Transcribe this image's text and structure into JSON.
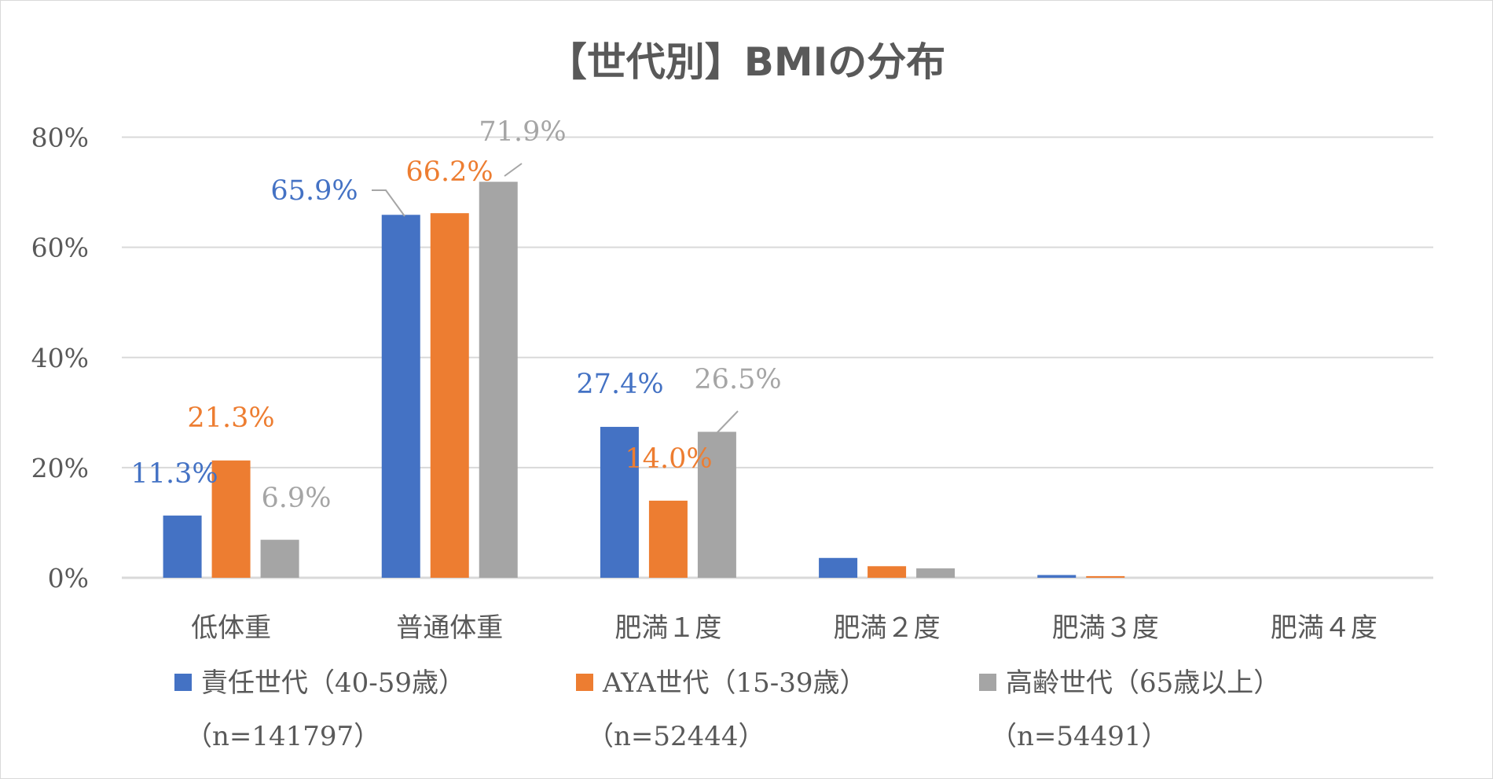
{
  "chart_data": {
    "type": "bar",
    "title": "【世代別】BMIの分布",
    "xlabel": "",
    "ylabel": "",
    "ylim": [
      0,
      80
    ],
    "yticks": [
      "0%",
      "20%",
      "40%",
      "60%",
      "80%"
    ],
    "grid": true,
    "legend_position": "bottom",
    "categories": [
      "低体重",
      "普通体重",
      "肥満１度",
      "肥満２度",
      "肥満３度",
      "肥満４度"
    ],
    "series": [
      {
        "name": "責任世代（40-59歳）",
        "n_label": "（n=141797）",
        "color": "#4472C4",
        "label_color": "#4472C4",
        "values": [
          11.3,
          65.9,
          27.4,
          3.6,
          0.5,
          0.0
        ],
        "labels": [
          "11.3%",
          "65.9%",
          "27.4%",
          null,
          null,
          null
        ]
      },
      {
        "name": "AYA世代（15-39歳）",
        "n_label": "（n=52444）",
        "color": "#ED7D31",
        "label_color": "#ED7D31",
        "values": [
          21.3,
          66.2,
          14.0,
          2.1,
          0.3,
          0.0
        ],
        "labels": [
          "21.3%",
          "66.2%",
          "14.0%",
          null,
          null,
          null
        ]
      },
      {
        "name": "高齢世代（65歳以上）",
        "n_label": "（n=54491）",
        "color": "#A5A5A5",
        "label_color": "#A5A5A5",
        "values": [
          6.9,
          71.9,
          26.5,
          1.7,
          0.0,
          0.0
        ],
        "labels": [
          "6.9%",
          "71.9%",
          "26.5%",
          null,
          null,
          null
        ]
      }
    ]
  }
}
